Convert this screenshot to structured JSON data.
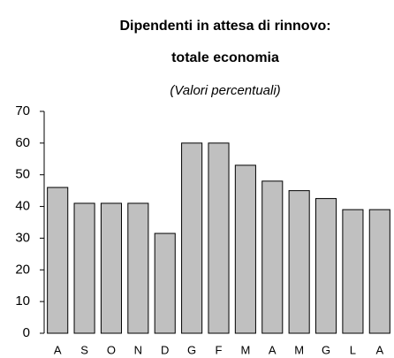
{
  "chart_data": {
    "type": "bar",
    "title": [
      "Dipendenti in attesa di rinnovo:",
      "totale economia"
    ],
    "subtitle": "(Valori percentuali)",
    "categories": [
      "A",
      "S",
      "O",
      "N",
      "D",
      "G",
      "F",
      "M",
      "A",
      "M",
      "G",
      "L",
      "A"
    ],
    "values": [
      46,
      41,
      41,
      41,
      31.5,
      60,
      60,
      53,
      48,
      45,
      42.5,
      39,
      39
    ],
    "color": "#c0c0c0",
    "ylim": [
      0,
      70
    ],
    "yticks": [
      0,
      10,
      20,
      30,
      40,
      50,
      60,
      70
    ],
    "grid": false
  }
}
